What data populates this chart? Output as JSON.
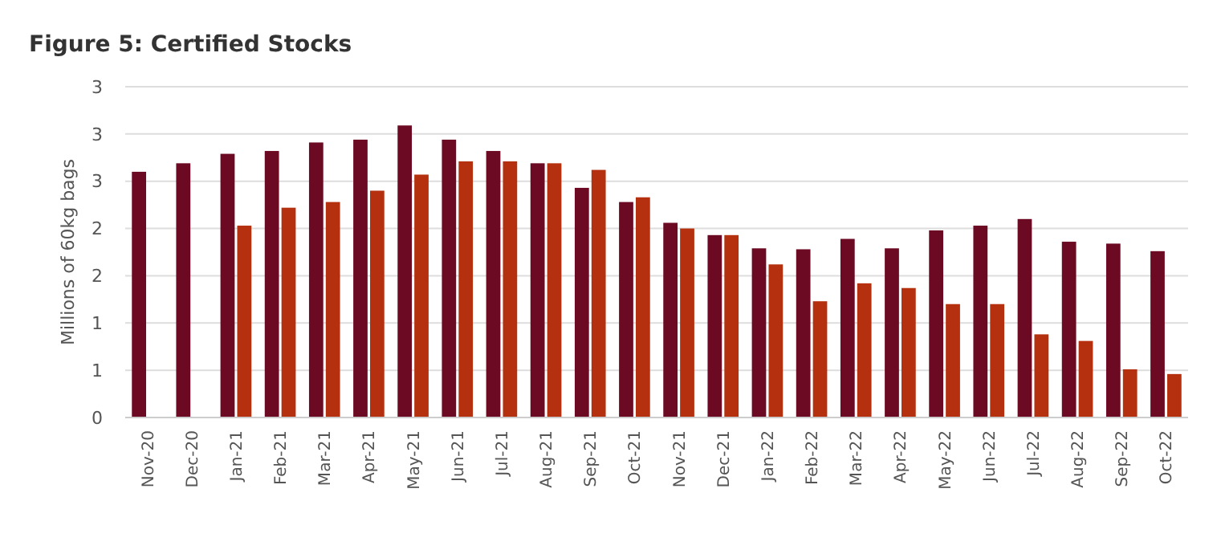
{
  "chart_data": {
    "type": "bar",
    "title": "Figure 5: Certified Stocks",
    "ylabel": "Millions of 60kg bags",
    "categories": [
      "Nov-20",
      "Dec-20",
      "Jan-21",
      "Feb-21",
      "Mar-21",
      "Apr-21",
      "May-21",
      "Jun-21",
      "Jul-21",
      "Aug-21",
      "Sep-21",
      "Oct-21",
      "Nov-21",
      "Dec-21",
      "Jan-22",
      "Feb-22",
      "Mar-22",
      "Apr-22",
      "May-22",
      "Jun-22",
      "Jul-22",
      "Aug-22",
      "Sep-22",
      "Oct-22"
    ],
    "series": [
      {
        "color": "#6b0a22",
        "values": [
          2.6,
          2.69,
          2.79,
          2.82,
          2.91,
          2.94,
          3.09,
          2.94,
          2.82,
          2.69,
          2.43,
          2.28,
          2.06,
          1.93,
          1.79,
          1.78,
          1.89,
          1.79,
          1.98,
          2.03,
          2.1,
          1.86,
          1.84,
          1.76
        ]
      },
      {
        "color": "#b5300e",
        "values": [
          null,
          null,
          2.03,
          2.22,
          2.28,
          2.4,
          2.57,
          2.71,
          2.71,
          2.69,
          2.62,
          2.33,
          2.0,
          1.93,
          1.62,
          1.23,
          1.42,
          1.37,
          1.2,
          1.2,
          0.88,
          0.81,
          0.51,
          0.46
        ]
      }
    ],
    "ylim": [
      0,
      3.5
    ],
    "yticks": [
      0,
      {
        "value": 0.5,
        "label": "1"
      },
      1,
      {
        "value": 1.5,
        "label": "2"
      },
      2,
      {
        "value": 2.5,
        "label": "3"
      },
      3,
      {
        "value": 3.5,
        "label": "3"
      }
    ],
    "grid": "y"
  }
}
